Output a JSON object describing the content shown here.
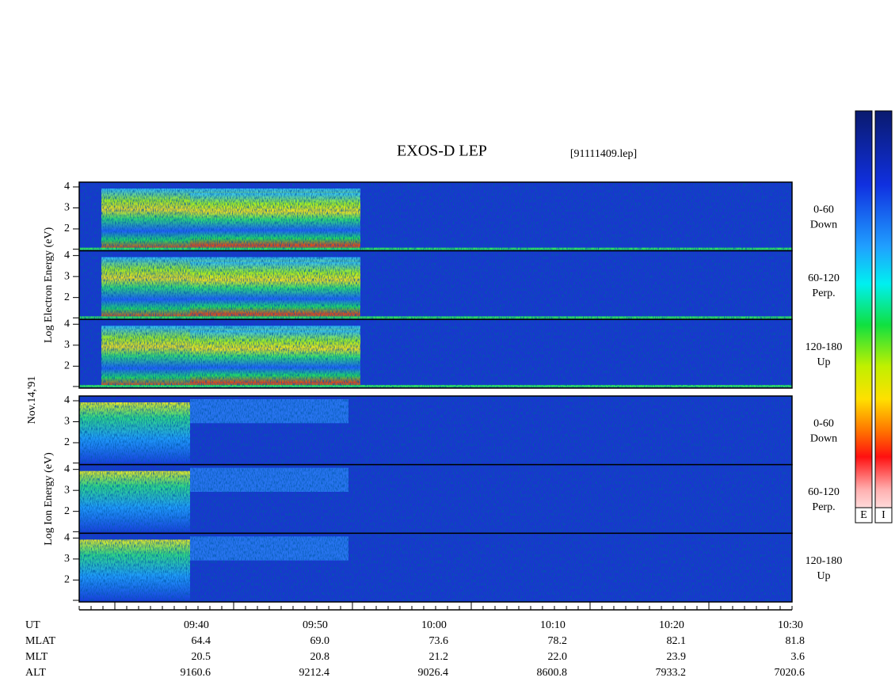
{
  "header": {
    "title": "EXOS-D LEP",
    "file": "[91111409.lep]"
  },
  "date": "Nov.14,'91",
  "electron": {
    "axis_label": "Log Electron Energy (eV)",
    "subpanels": [
      {
        "ticks": [
          "4",
          "3",
          "2"
        ],
        "angle": "0-60",
        "direction": "Down"
      },
      {
        "ticks": [
          "4",
          "3",
          "2"
        ],
        "angle": "60-120",
        "direction": "Perp."
      },
      {
        "ticks": [
          "4",
          "3",
          "2"
        ],
        "angle": "120-180",
        "direction": "Up"
      }
    ]
  },
  "ion": {
    "axis_label": "Log Ion Energy (eV)",
    "subpanels": [
      {
        "ticks": [
          "4",
          "3",
          "2"
        ],
        "angle": "0-60",
        "direction": "Down"
      },
      {
        "ticks": [
          "4",
          "3",
          "2"
        ],
        "angle": "60-120",
        "direction": "Perp."
      },
      {
        "ticks": [
          "4",
          "3",
          "2"
        ],
        "angle": "120-180",
        "direction": "Up"
      }
    ]
  },
  "colorbars": [
    "E",
    "I"
  ],
  "footer": {
    "rows": [
      {
        "label": "UT",
        "values": [
          "09:40",
          "09:50",
          "10:00",
          "10:10",
          "10:20",
          "10:30"
        ]
      },
      {
        "label": "MLAT",
        "values": [
          "64.4",
          "69.0",
          "73.6",
          "78.2",
          "82.1",
          "81.8"
        ]
      },
      {
        "label": "MLT",
        "values": [
          "20.5",
          "20.8",
          "21.2",
          "22.0",
          "23.9",
          "3.6"
        ]
      },
      {
        "label": "ALT",
        "values": [
          "9160.6",
          "9212.4",
          "9026.4",
          "8600.8",
          "7933.2",
          "7020.6"
        ]
      }
    ]
  }
}
